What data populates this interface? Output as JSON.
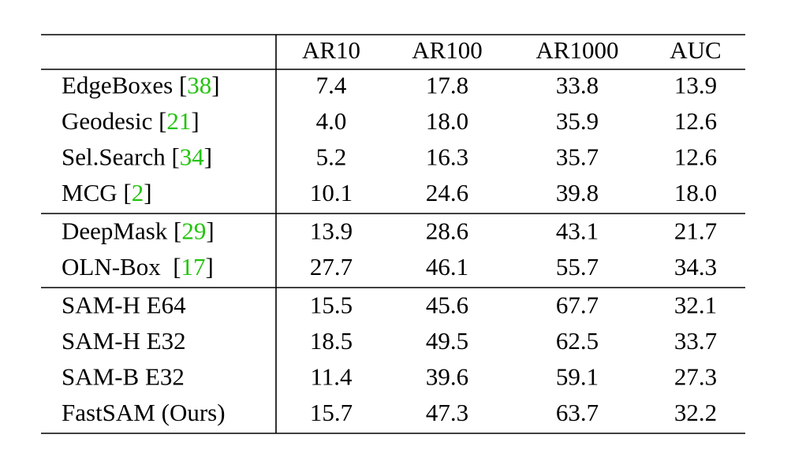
{
  "table": {
    "header": [
      "AR10",
      "AR100",
      "AR1000",
      "AUC"
    ],
    "groups": [
      [
        {
          "label": [
            "EdgeBoxes [",
            "38",
            "]"
          ],
          "values": [
            "7.4",
            "17.8",
            "33.8",
            "13.9"
          ]
        },
        {
          "label": [
            "Geodesic [",
            "21",
            "]"
          ],
          "values": [
            "4.0",
            "18.0",
            "35.9",
            "12.6"
          ]
        },
        {
          "label": [
            "Sel.Search [",
            "34",
            "]"
          ],
          "values": [
            "5.2",
            "16.3",
            "35.7",
            "12.6"
          ]
        },
        {
          "label": [
            "MCG [",
            "2",
            "]"
          ],
          "values": [
            "10.1",
            "24.6",
            "39.8",
            "18.0"
          ]
        }
      ],
      [
        {
          "label": [
            "DeepMask [",
            "29",
            "]"
          ],
          "values": [
            "13.9",
            "28.6",
            "43.1",
            "21.7"
          ]
        },
        {
          "label": [
            "OLN-Box  [",
            "17",
            "]"
          ],
          "values": [
            "27.7",
            "46.1",
            "55.7",
            "34.3"
          ]
        }
      ],
      [
        {
          "label": [
            "SAM-H E64"
          ],
          "values": [
            "15.5",
            "45.6",
            "67.7",
            "32.1"
          ]
        },
        {
          "label": [
            "SAM-H E32"
          ],
          "values": [
            "18.5",
            "49.5",
            "62.5",
            "33.7"
          ]
        },
        {
          "label": [
            "SAM-B E32"
          ],
          "values": [
            "11.4",
            "39.6",
            "59.1",
            "27.3"
          ]
        },
        {
          "label": [
            "FastSAM (Ours)"
          ],
          "values": [
            "15.7",
            "47.3",
            "63.7",
            "32.2"
          ]
        }
      ]
    ]
  }
}
